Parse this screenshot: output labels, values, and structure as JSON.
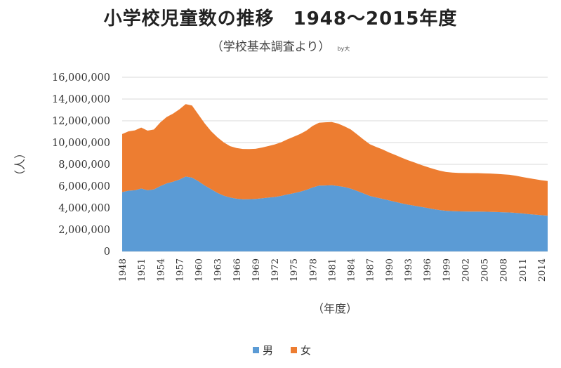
{
  "chart_data": {
    "type": "area",
    "stacked": true,
    "title": "小学校児童数の推移　1948～2015年度",
    "subtitle": "（学校基本調査より）",
    "signature": "by大",
    "xlabel": "（年度）",
    "ylabel": "（人）",
    "ylim": [
      0,
      16000000
    ],
    "yticks": [
      "0",
      "2,000,000",
      "4,000,000",
      "6,000,000",
      "8,000,000",
      "10,000,000",
      "12,000,000",
      "14,000,000",
      "16,000,000"
    ],
    "grid": true,
    "legend_position": "bottom",
    "x": [
      1948,
      1949,
      1950,
      1951,
      1952,
      1953,
      1954,
      1955,
      1956,
      1957,
      1958,
      1959,
      1960,
      1961,
      1962,
      1963,
      1964,
      1965,
      1966,
      1967,
      1968,
      1969,
      1970,
      1971,
      1972,
      1973,
      1974,
      1975,
      1976,
      1977,
      1978,
      1979,
      1980,
      1981,
      1982,
      1983,
      1984,
      1985,
      1986,
      1987,
      1988,
      1989,
      1990,
      1991,
      1992,
      1993,
      1994,
      1995,
      1996,
      1997,
      1998,
      1999,
      2000,
      2001,
      2002,
      2003,
      2004,
      2005,
      2006,
      2007,
      2008,
      2009,
      2010,
      2011,
      2012,
      2013,
      2014,
      2015
    ],
    "x_tick_labels": [
      "1948",
      "1951",
      "1954",
      "1957",
      "1960",
      "1963",
      "1966",
      "1969",
      "1972",
      "1975",
      "1978",
      "1981",
      "1984",
      "1987",
      "1990",
      "1993",
      "1996",
      "1999",
      "2002",
      "2005",
      "2008",
      "2011",
      "2014"
    ],
    "series": [
      {
        "name": "男",
        "color": "#5b9bd5",
        "values": [
          5450000,
          5580000,
          5620000,
          5780000,
          5620000,
          5700000,
          6000000,
          6250000,
          6400000,
          6600000,
          6880000,
          6780000,
          6450000,
          6060000,
          5720000,
          5380000,
          5120000,
          4950000,
          4850000,
          4790000,
          4800000,
          4820000,
          4880000,
          4940000,
          5000000,
          5100000,
          5230000,
          5350000,
          5480000,
          5650000,
          5880000,
          6050000,
          6060000,
          6080000,
          6010000,
          5920000,
          5770000,
          5560000,
          5330000,
          5100000,
          4960000,
          4830000,
          4690000,
          4560000,
          4420000,
          4300000,
          4200000,
          4100000,
          4000000,
          3890000,
          3800000,
          3730000,
          3700000,
          3680000,
          3670000,
          3660000,
          3660000,
          3650000,
          3640000,
          3620000,
          3600000,
          3580000,
          3540000,
          3490000,
          3430000,
          3380000,
          3330000,
          3290000
        ]
      },
      {
        "name": "女",
        "color": "#ed7d31",
        "values": [
          5330000,
          5450000,
          5500000,
          5600000,
          5480000,
          5500000,
          5850000,
          6100000,
          6250000,
          6450000,
          6650000,
          6620000,
          6130000,
          5700000,
          5330000,
          5100000,
          4900000,
          4720000,
          4650000,
          4620000,
          4600000,
          4610000,
          4660000,
          4740000,
          4820000,
          4920000,
          5060000,
          5180000,
          5300000,
          5450000,
          5650000,
          5770000,
          5800000,
          5810000,
          5730000,
          5570000,
          5430000,
          5190000,
          4950000,
          4750000,
          4640000,
          4540000,
          4410000,
          4300000,
          4190000,
          4080000,
          3980000,
          3860000,
          3770000,
          3690000,
          3620000,
          3570000,
          3540000,
          3530000,
          3530000,
          3530000,
          3530000,
          3520000,
          3510000,
          3500000,
          3480000,
          3460000,
          3410000,
          3350000,
          3300000,
          3260000,
          3210000,
          3180000
        ]
      }
    ]
  }
}
